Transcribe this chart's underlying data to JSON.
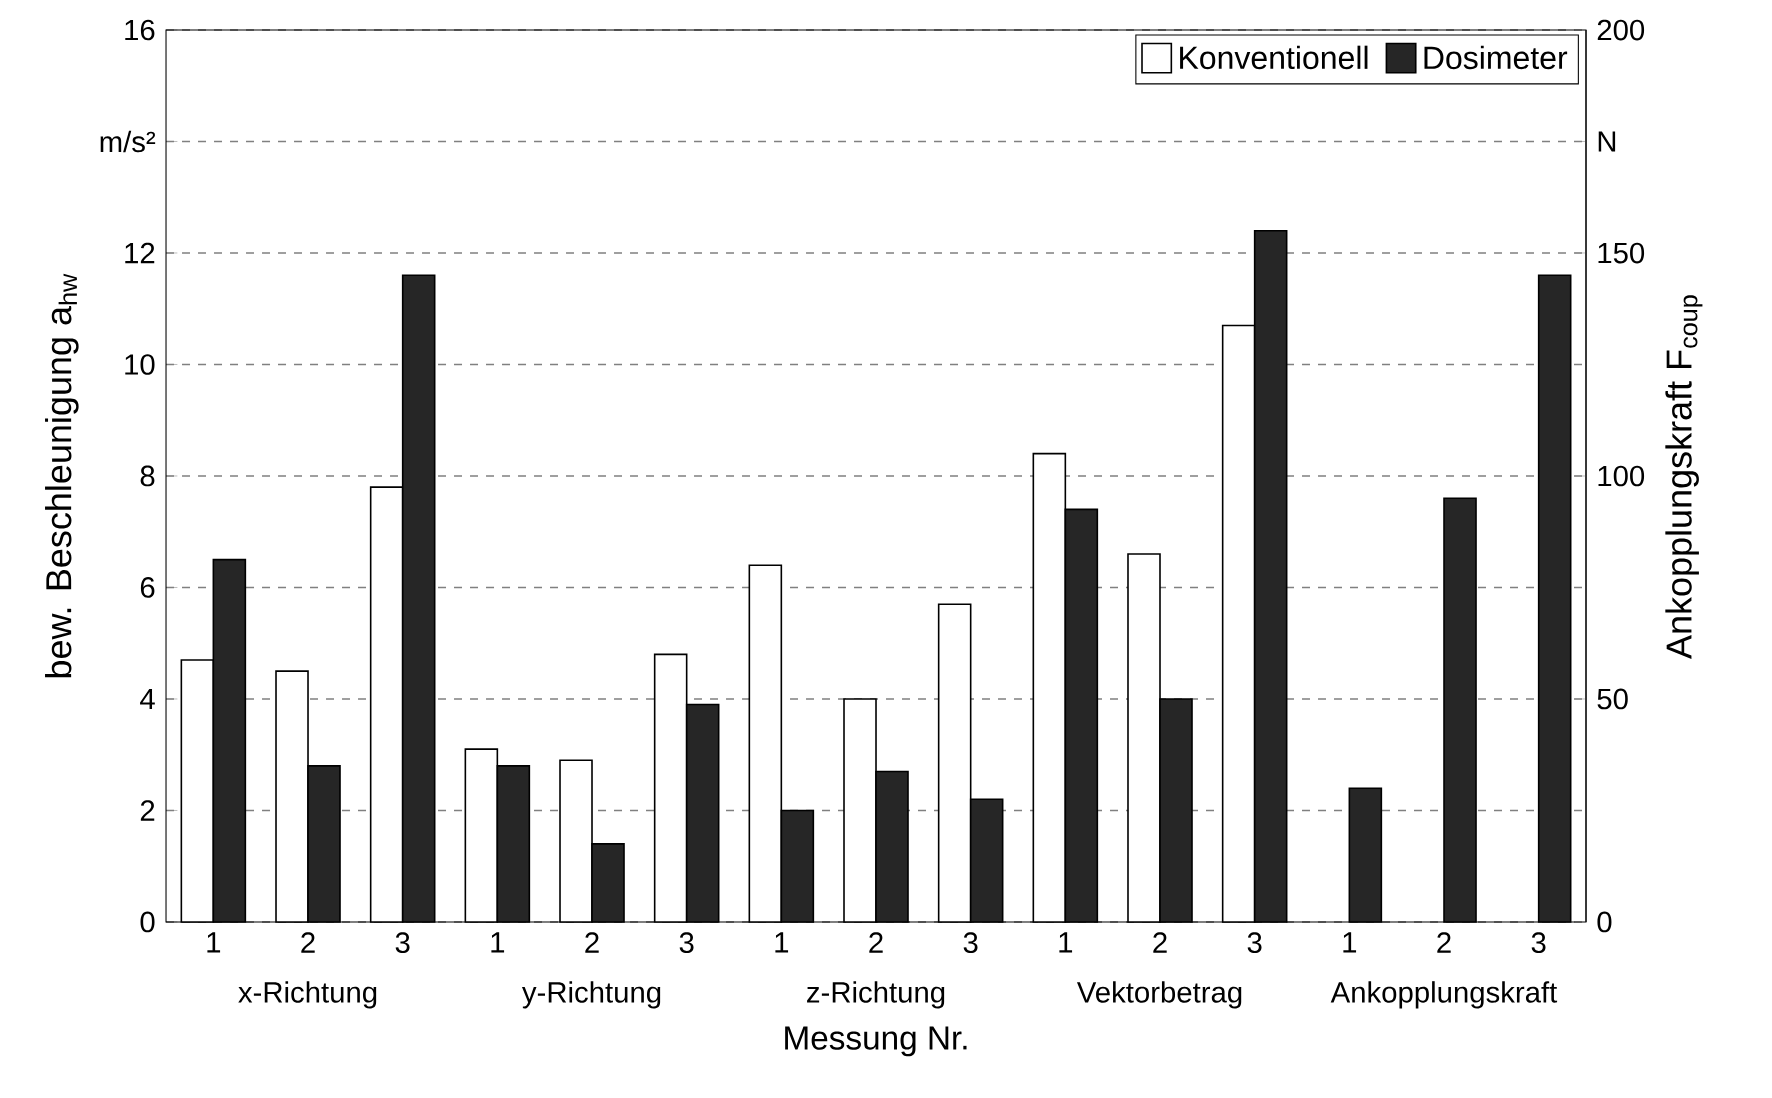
{
  "chart_data": {
    "type": "bar",
    "categories": [
      "1",
      "2",
      "3",
      "1",
      "2",
      "3",
      "1",
      "2",
      "3",
      "1",
      "2",
      "3",
      "1",
      "2",
      "3"
    ],
    "series": [
      {
        "name": "Konventionell",
        "color": "#ffffff",
        "values": [
          4.7,
          4.5,
          7.8,
          3.1,
          2.9,
          4.8,
          6.4,
          4.0,
          5.7,
          8.4,
          6.6,
          10.7,
          null,
          null,
          null
        ]
      },
      {
        "name": "Dosimeter",
        "color": "#262626",
        "values": [
          6.5,
          2.8,
          11.6,
          2.8,
          1.4,
          3.9,
          2.0,
          2.7,
          2.2,
          7.4,
          4.0,
          12.4,
          null,
          null,
          null
        ]
      },
      {
        "color": "#262626",
        "axis": "y2",
        "values": [
          null,
          null,
          null,
          null,
          null,
          null,
          null,
          null,
          null,
          null,
          null,
          null,
          30,
          95,
          145
        ]
      }
    ],
    "xlabel": "Messung Nr.",
    "ylabel": "bew. Beschleunigung a$_{hw}$",
    "y2label": "Ankopplungskraft F$_{coup}$",
    "ylim": [
      0,
      16
    ],
    "yticks": [
      0,
      2,
      4,
      6,
      8,
      10,
      12,
      {
        "value": 14,
        "label": "m/s²"
      },
      16
    ],
    "y2lim": [
      0,
      200
    ],
    "y2ticks": [
      0,
      50,
      100,
      150,
      {
        "value": 175,
        "label": "N"
      },
      200
    ],
    "annotations": [
      "x-Richtung",
      "y-Richtung",
      "z-Richtung",
      "Vektorbetrag",
      "Ankopplungskraft"
    ],
    "grid": "y",
    "legend": "top right"
  }
}
